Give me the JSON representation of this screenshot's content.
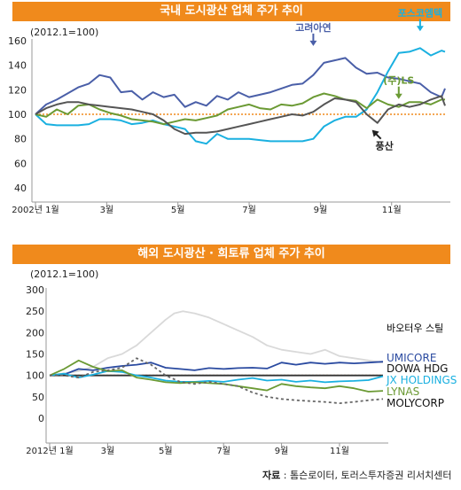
{
  "colors": {
    "banner": "#f08a1c",
    "reference": "#f08a1c",
    "zinc": "#4a5fa8",
    "posco": "#1ab0e0",
    "ls": "#6b9a34",
    "poongsan": "#555555",
    "baotou": "#d9d9d9",
    "umicore": "#2a4aa0",
    "dowa": "#333333",
    "jx": "#1ab0e0",
    "lynas": "#6b9a34",
    "molycorp": "#666666"
  },
  "footer": {
    "label": "자료",
    "separator": " : ",
    "text": "톰슨로이터, 토러스투자증권 리서치센터"
  },
  "chart_data": [
    {
      "type": "line",
      "title": "국내 도시광산 업체 주가 추이",
      "subtitle": "(2012.1=100)",
      "ylim": [
        40,
        160
      ],
      "yticks": [
        40,
        60,
        80,
        100,
        120,
        140,
        160
      ],
      "xlim": [
        0,
        11.5
      ],
      "xticks": [
        {
          "v": 0,
          "label": "2002년 1월"
        },
        {
          "v": 2,
          "label": "3월"
        },
        {
          "v": 4,
          "label": "5월"
        },
        {
          "v": 6,
          "label": "7월"
        },
        {
          "v": 8,
          "label": "9월"
        },
        {
          "v": 10,
          "label": "11월"
        }
      ],
      "reference": 100,
      "series": [
        {
          "name": "고려아연",
          "color": "#4a5fa8",
          "x": [
            0,
            0.3,
            0.6,
            0.9,
            1.2,
            1.5,
            1.8,
            2.1,
            2.4,
            2.7,
            3,
            3.3,
            3.6,
            3.9,
            4.2,
            4.5,
            4.8,
            5.1,
            5.4,
            5.7,
            6,
            6.3,
            6.6,
            6.9,
            7.2,
            7.5,
            7.8,
            8.1,
            8.4,
            8.7,
            9,
            9.3,
            9.6,
            9.9,
            10.2,
            10.5,
            10.8,
            11.1,
            11.4,
            11.5
          ],
          "values": [
            100,
            108,
            112,
            117,
            122,
            125,
            132,
            130,
            118,
            119,
            112,
            118,
            114,
            116,
            106,
            110,
            107,
            115,
            112,
            118,
            114,
            116,
            118,
            121,
            124,
            125,
            132,
            142,
            144,
            146,
            138,
            133,
            134,
            130,
            129,
            127,
            125,
            118,
            114,
            121
          ]
        },
        {
          "name": "포스코엠텍",
          "color": "#1ab0e0",
          "x": [
            0,
            0.3,
            0.6,
            0.9,
            1.2,
            1.5,
            1.8,
            2.1,
            2.4,
            2.7,
            3,
            3.3,
            3.6,
            3.9,
            4.2,
            4.5,
            4.8,
            5.1,
            5.4,
            5.7,
            6,
            6.3,
            6.6,
            6.9,
            7.2,
            7.5,
            7.8,
            8.1,
            8.4,
            8.7,
            9,
            9.3,
            9.6,
            9.9,
            10.2,
            10.5,
            10.8,
            11.1,
            11.4,
            11.5
          ],
          "values": [
            100,
            92,
            91,
            91,
            91,
            92,
            96,
            96,
            95,
            92,
            93,
            95,
            92,
            90,
            88,
            78,
            76,
            84,
            80,
            80,
            80,
            79,
            78,
            78,
            78,
            78,
            80,
            90,
            95,
            98,
            98,
            104,
            118,
            135,
            150,
            151,
            154,
            148,
            152,
            151
          ]
        },
        {
          "name": "(주)LS",
          "color": "#6b9a34",
          "x": [
            0,
            0.3,
            0.6,
            0.9,
            1.2,
            1.5,
            1.8,
            2.1,
            2.4,
            2.7,
            3,
            3.3,
            3.6,
            3.9,
            4.2,
            4.5,
            4.8,
            5.1,
            5.4,
            5.7,
            6,
            6.3,
            6.6,
            6.9,
            7.2,
            7.5,
            7.8,
            8.1,
            8.4,
            8.7,
            9,
            9.3,
            9.6,
            9.9,
            10.2,
            10.5,
            10.8,
            11.1,
            11.4,
            11.5
          ],
          "values": [
            100,
            98,
            104,
            100,
            107,
            108,
            104,
            101,
            99,
            96,
            95,
            94,
            92,
            94,
            96,
            95,
            97,
            99,
            104,
            106,
            108,
            105,
            104,
            108,
            107,
            109,
            114,
            117,
            115,
            112,
            111,
            105,
            112,
            108,
            106,
            110,
            110,
            108,
            112,
            112
          ]
        },
        {
          "name": "풍산",
          "color": "#555555",
          "x": [
            0,
            0.3,
            0.6,
            0.9,
            1.2,
            1.5,
            1.8,
            2.1,
            2.4,
            2.7,
            3,
            3.3,
            3.6,
            3.9,
            4.2,
            4.5,
            4.8,
            5.1,
            5.4,
            5.7,
            6,
            6.3,
            6.6,
            6.9,
            7.2,
            7.5,
            7.8,
            8.1,
            8.4,
            8.7,
            9,
            9.3,
            9.6,
            9.9,
            10.2,
            10.5,
            10.8,
            11.1,
            11.4,
            11.5
          ],
          "values": [
            100,
            105,
            108,
            110,
            110,
            108,
            107,
            106,
            105,
            104,
            102,
            100,
            95,
            88,
            84,
            85,
            85,
            86,
            88,
            90,
            92,
            94,
            96,
            98,
            100,
            99,
            102,
            108,
            113,
            112,
            110,
            100,
            93,
            104,
            108,
            106,
            108,
            112,
            115,
            107
          ]
        }
      ],
      "annotations": [
        {
          "text": "고려아연",
          "series": "고려아연",
          "x": 8.2
        },
        {
          "text": "포스코엠텍",
          "series": "포스코엠텍",
          "x": 10.7
        },
        {
          "text": "(주)LS",
          "series": "(주)LS",
          "x": 10.2
        },
        {
          "text": "풍산",
          "series": "풍산",
          "x": 9.7
        }
      ]
    },
    {
      "type": "line",
      "title": "해외 도시광산 · 희토류 업체 주가 추이",
      "subtitle": "(2012.1=100)",
      "ylim": [
        0,
        300
      ],
      "yticks": [
        0,
        50,
        100,
        150,
        200,
        250,
        300
      ],
      "xlim": [
        0,
        11.5
      ],
      "xticks": [
        {
          "v": 0,
          "label": "2012년 1월"
        },
        {
          "v": 2,
          "label": "3월"
        },
        {
          "v": 4,
          "label": "5월"
        },
        {
          "v": 6,
          "label": "7월"
        },
        {
          "v": 8,
          "label": "9월"
        },
        {
          "v": 10,
          "label": "11월"
        }
      ],
      "reference": 100,
      "series": [
        {
          "name": "바오터우 스틸",
          "color": "#d9d9d9",
          "dash": "",
          "x": [
            0,
            0.5,
            1,
            1.5,
            2,
            2.5,
            3,
            3.5,
            4,
            4.3,
            4.6,
            5,
            5.5,
            6,
            6.5,
            7,
            7.5,
            8,
            8.5,
            9,
            9.5,
            10,
            10.5,
            11,
            11.5
          ],
          "values": [
            100,
            105,
            110,
            120,
            140,
            150,
            170,
            200,
            230,
            245,
            250,
            245,
            235,
            220,
            205,
            190,
            170,
            160,
            155,
            150,
            160,
            145,
            140,
            135,
            130
          ]
        },
        {
          "name": "UMICORE",
          "color": "#2a4aa0",
          "dash": "",
          "x": [
            0,
            0.5,
            1,
            1.5,
            2,
            2.5,
            3,
            3.5,
            4,
            4.5,
            5,
            5.5,
            6,
            6.5,
            7,
            7.5,
            8,
            8.5,
            9,
            9.5,
            10,
            10.5,
            11,
            11.5
          ],
          "values": [
            100,
            102,
            115,
            112,
            118,
            122,
            125,
            130,
            118,
            115,
            112,
            117,
            115,
            117,
            118,
            116,
            130,
            125,
            130,
            127,
            130,
            128,
            130,
            132
          ]
        },
        {
          "name": "DOWA HDG",
          "color": "#333333",
          "dash": "",
          "x": [
            0,
            0.5,
            1,
            1.5,
            2,
            2.5,
            3,
            3.5,
            4,
            4.5,
            5,
            5.5,
            6,
            6.5,
            7,
            7.5,
            8,
            8.5,
            9,
            9.5,
            10,
            10.5,
            11,
            11.5
          ],
          "values": [
            100,
            100,
            100,
            100,
            100,
            100,
            100,
            100,
            100,
            100,
            100,
            100,
            100,
            100,
            100,
            100,
            100,
            100,
            100,
            100,
            100,
            100,
            100,
            100
          ]
        },
        {
          "name": "JX HOLDINGS",
          "color": "#1ab0e0",
          "dash": "",
          "x": [
            0,
            0.5,
            1,
            1.5,
            2,
            2.5,
            3,
            3.5,
            4,
            4.5,
            5,
            5.5,
            6,
            6.5,
            7,
            7.5,
            8,
            8.5,
            9,
            9.5,
            10,
            10.5,
            11,
            11.5
          ],
          "values": [
            100,
            104,
            95,
            102,
            110,
            108,
            100,
            95,
            88,
            85,
            85,
            87,
            85,
            90,
            94,
            88,
            90,
            85,
            88,
            84,
            86,
            87,
            89,
            98
          ]
        },
        {
          "name": "LYNAS",
          "color": "#6b9a34",
          "dash": "",
          "x": [
            0,
            0.5,
            1,
            1.5,
            2,
            2.5,
            3,
            3.5,
            4,
            4.5,
            5,
            5.5,
            6,
            6.5,
            7,
            7.5,
            8,
            8.5,
            9,
            9.5,
            10,
            10.5,
            11,
            11.5
          ],
          "values": [
            100,
            115,
            135,
            120,
            110,
            112,
            95,
            90,
            84,
            82,
            84,
            82,
            80,
            75,
            70,
            65,
            80,
            75,
            72,
            70,
            75,
            70,
            62,
            64
          ]
        },
        {
          "name": "MOLYCORP",
          "color": "#666666",
          "dash": "3,3",
          "x": [
            0,
            0.5,
            1,
            1.5,
            2,
            2.5,
            3,
            3.5,
            4,
            4.5,
            5,
            5.5,
            6,
            6.5,
            7,
            7.5,
            8,
            8.5,
            9,
            9.5,
            10,
            10.5,
            11,
            11.5
          ],
          "values": [
            100,
            100,
            95,
            108,
            112,
            118,
            140,
            125,
            100,
            85,
            80,
            85,
            80,
            75,
            60,
            50,
            45,
            42,
            40,
            38,
            35,
            38,
            42,
            45
          ]
        }
      ]
    }
  ]
}
